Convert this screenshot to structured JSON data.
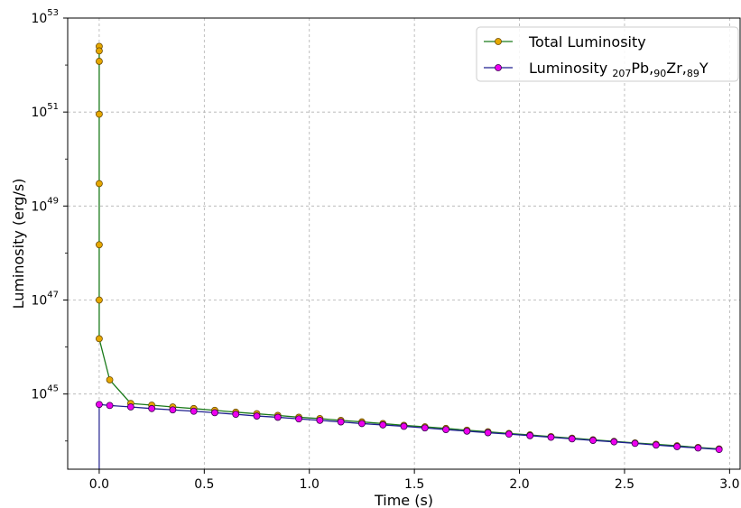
{
  "chart_data": {
    "type": "line",
    "xlabel": "Time (s)",
    "ylabel": "Luminosity (erg/s)",
    "x_axis": {
      "range": [
        -0.15,
        3.05
      ],
      "ticks": [
        0.0,
        0.5,
        1.0,
        1.5,
        2.0,
        2.5,
        3.0
      ],
      "tick_labels": [
        "0.0",
        "0.5",
        "1.0",
        "1.5",
        "2.0",
        "2.5",
        "3.0"
      ]
    },
    "y_axis": {
      "scale": "log",
      "range_exponent": [
        43.4,
        53.0
      ],
      "tick_exponents": [
        45,
        47,
        49,
        51,
        53
      ],
      "tick_base": "10"
    },
    "grid": true,
    "legend_placement": "top-right",
    "series": [
      {
        "name": "Total Luminosity",
        "line_color": "#1a7a1a",
        "marker_color": "#e6a800",
        "marker_edge": "#6b4a00",
        "points": [
          [
            0.0,
            2.5e+52
          ],
          [
            0.0,
            2e+52
          ],
          [
            0.0,
            1.2e+52
          ],
          [
            0.0,
            9e+50
          ],
          [
            0.0,
            3e+49
          ],
          [
            0.0,
            1.5e+48
          ],
          [
            0.0,
            1e+47
          ],
          [
            0.0,
            1.5e+46
          ],
          [
            0.05,
            2e+45
          ],
          [
            0.15,
            6.3e+44
          ],
          [
            0.25,
            5.8e+44
          ],
          [
            0.35,
            5.3e+44
          ],
          [
            0.45,
            4.9e+44
          ],
          [
            0.55,
            4.5e+44
          ],
          [
            0.65,
            4.1e+44
          ],
          [
            0.75,
            3.8e+44
          ],
          [
            0.85,
            3.5e+44
          ],
          [
            0.95,
            3.2e+44
          ],
          [
            1.05,
            3e+44
          ],
          [
            1.15,
            2.75e+44
          ],
          [
            1.25,
            2.55e+44
          ],
          [
            1.35,
            2.35e+44
          ],
          [
            1.45,
            2.15e+44
          ],
          [
            1.55,
            2e+44
          ],
          [
            1.65,
            1.85e+44
          ],
          [
            1.75,
            1.7e+44
          ],
          [
            1.85,
            1.57e+44
          ],
          [
            1.95,
            1.45e+44
          ],
          [
            2.05,
            1.35e+44
          ],
          [
            2.15,
            1.24e+44
          ],
          [
            2.25,
            1.15e+44
          ],
          [
            2.35,
            1.06e+44
          ],
          [
            2.45,
            9.8e+43
          ],
          [
            2.55,
            9.1e+43
          ],
          [
            2.65,
            8.5e+43
          ],
          [
            2.75,
            7.9e+43
          ],
          [
            2.85,
            7.3e+43
          ],
          [
            2.95,
            6.8e+43
          ]
        ]
      },
      {
        "name": "Luminosity 207Pb,90Zr,89Y",
        "name_parts": [
          "Luminosity ",
          "207",
          "Pb,",
          "90",
          "Zr,",
          "89",
          "Y"
        ],
        "line_color": "#1f1f8f",
        "marker_color": "#ee00ee",
        "marker_edge": "#33004d",
        "points": [
          [
            0.0,
            6e+44
          ],
          [
            0.05,
            5.7e+44
          ],
          [
            0.15,
            5.3e+44
          ],
          [
            0.25,
            4.9e+44
          ],
          [
            0.35,
            4.6e+44
          ],
          [
            0.45,
            4.3e+44
          ],
          [
            0.55,
            4e+44
          ],
          [
            0.65,
            3.7e+44
          ],
          [
            0.75,
            3.4e+44
          ],
          [
            0.85,
            3.2e+44
          ],
          [
            0.95,
            2.95e+44
          ],
          [
            1.05,
            2.75e+44
          ],
          [
            1.15,
            2.55e+44
          ],
          [
            1.25,
            2.35e+44
          ],
          [
            1.35,
            2.2e+44
          ],
          [
            1.45,
            2.05e+44
          ],
          [
            1.55,
            1.9e+44
          ],
          [
            1.65,
            1.75e+44
          ],
          [
            1.75,
            1.62e+44
          ],
          [
            1.85,
            1.5e+44
          ],
          [
            1.95,
            1.4e+44
          ],
          [
            2.05,
            1.3e+44
          ],
          [
            2.15,
            1.2e+44
          ],
          [
            2.25,
            1.11e+44
          ],
          [
            2.35,
            1.03e+44
          ],
          [
            2.45,
            9.6e+43
          ],
          [
            2.55,
            8.9e+43
          ],
          [
            2.65,
            8.2e+43
          ],
          [
            2.75,
            7.6e+43
          ],
          [
            2.85,
            7.1e+43
          ],
          [
            2.95,
            6.6e+43
          ]
        ]
      }
    ]
  }
}
